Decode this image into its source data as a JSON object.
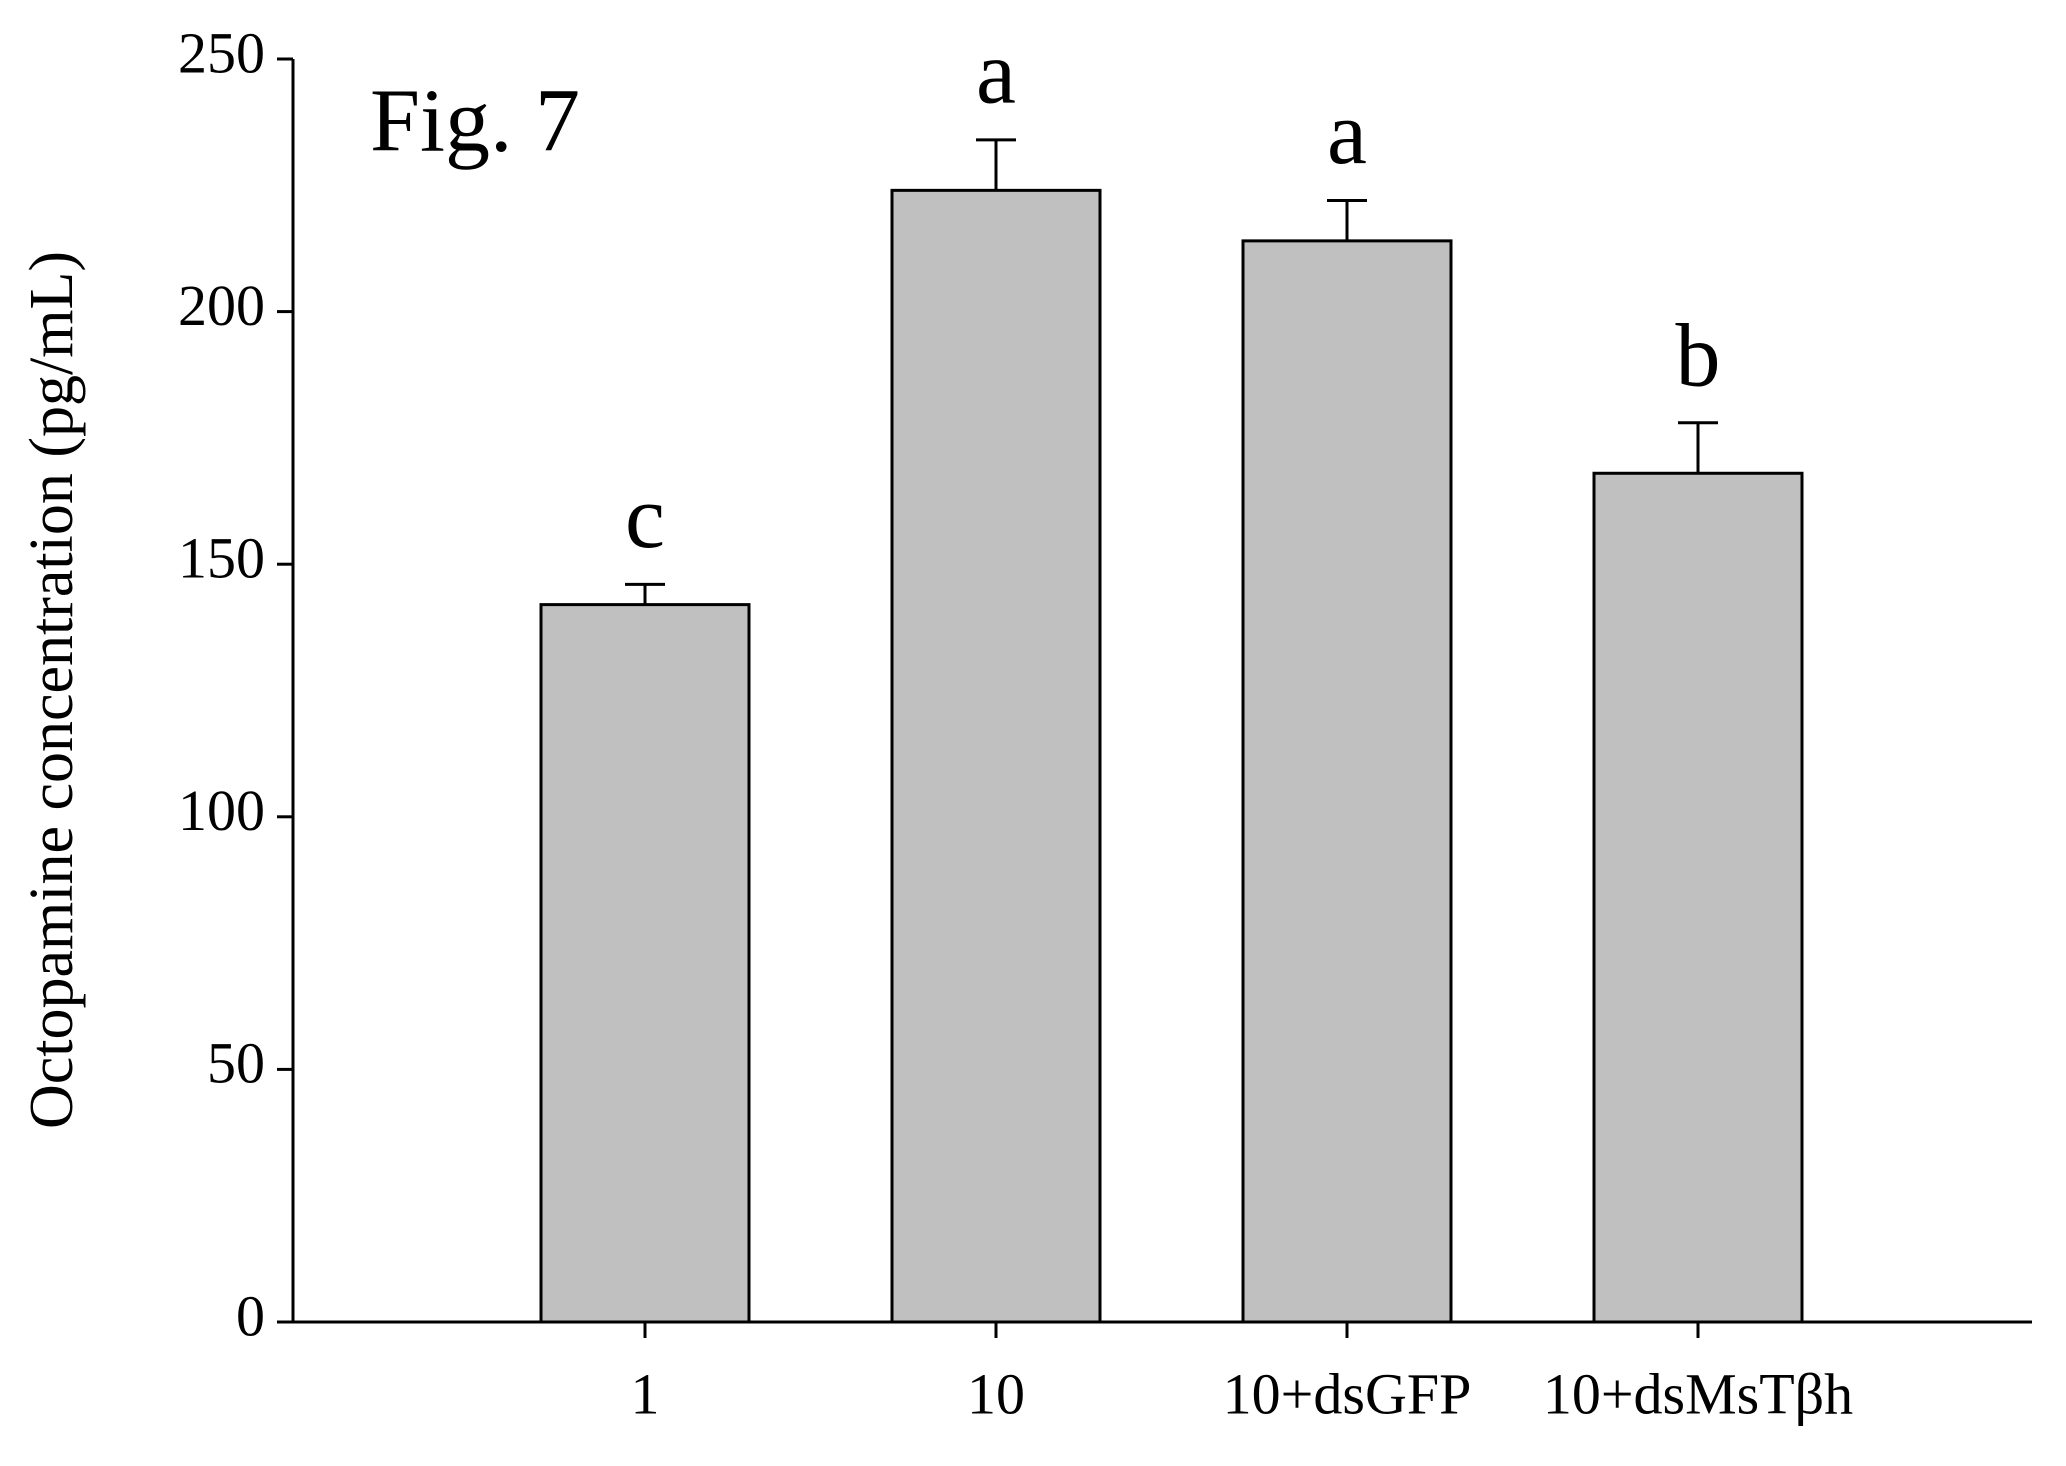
{
  "chart_data": {
    "type": "bar",
    "title": "Fig. 7",
    "y_label": "Octopamine concentration (pg/mL)",
    "categories": [
      "1",
      "10",
      "10+dsGFP",
      "10+dsMsTβh"
    ],
    "values": [
      142,
      224,
      214,
      168
    ],
    "errors": [
      4,
      10,
      8,
      10
    ],
    "annotations": [
      "c",
      "a",
      "a",
      "b"
    ],
    "color": "#c0c0c0",
    "ylim": [
      0,
      250
    ],
    "yticks": [
      0,
      50,
      100,
      150,
      200,
      250
    ],
    "grid": false
  }
}
